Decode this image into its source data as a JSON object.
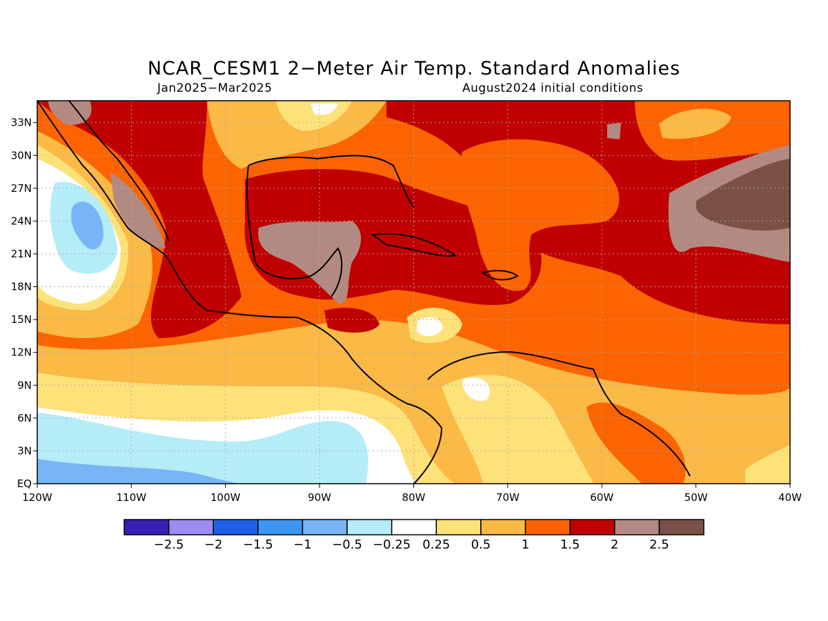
{
  "title": "NCAR_CESM1 2−Meter Air Temp. Standard Anomalies",
  "period": "Jan2025−Mar2025",
  "init": "August2024 initial conditions",
  "map": {
    "lon_range": [
      -120,
      -40
    ],
    "lat_range": [
      0,
      35
    ],
    "x_ticks": [
      "120W",
      "110W",
      "100W",
      "90W",
      "80W",
      "70W",
      "60W",
      "50W",
      "40W"
    ],
    "y_ticks": [
      "EQ",
      "3N",
      "6N",
      "9N",
      "12N",
      "15N",
      "18N",
      "21N",
      "24N",
      "27N",
      "30N",
      "33N"
    ],
    "grid": true
  },
  "colorbar": {
    "colors": [
      "#3a1fb4",
      "#9b8cf2",
      "#1f5fe8",
      "#3d96f0",
      "#78b5f7",
      "#b4ecf7",
      "#ffffff",
      "#fde27a",
      "#fbb945",
      "#fb6400",
      "#c00000",
      "#b38a82",
      "#7a5047"
    ],
    "labels": [
      "−2.5",
      "−2",
      "−1.5",
      "−1",
      "−0.5",
      "−0.25",
      "0.25",
      "0.5",
      "1",
      "1.5",
      "2",
      "2.5"
    ]
  },
  "palette": {
    "land_outline": "#000000",
    "grid": "#aaaaaa"
  }
}
